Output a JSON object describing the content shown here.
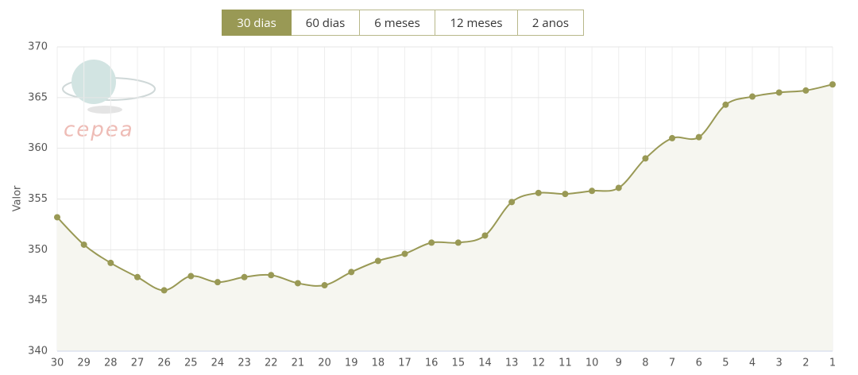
{
  "controls": {
    "buttons": [
      "30 dias",
      "60 dias",
      "6 meses",
      "12 meses",
      "2 anos"
    ],
    "active": 0
  },
  "logo": "cepea",
  "chart_data": {
    "type": "area-spline",
    "y_label": "Valor",
    "categories": [
      "30",
      "29",
      "28",
      "27",
      "26",
      "25",
      "24",
      "23",
      "22",
      "21",
      "20",
      "19",
      "18",
      "17",
      "16",
      "15",
      "14",
      "13",
      "12",
      "11",
      "10",
      "9",
      "8",
      "7",
      "6",
      "5",
      "4",
      "3",
      "2",
      "1"
    ],
    "values": [
      353.2,
      350.5,
      348.7,
      347.3,
      346.0,
      347.4,
      346.8,
      347.3,
      347.5,
      346.7,
      346.5,
      347.8,
      348.9,
      349.6,
      350.7,
      350.7,
      351.4,
      354.7,
      355.6,
      355.5,
      355.8,
      356.1,
      359.0,
      361.0,
      361.1,
      364.3,
      365.1,
      365.5,
      365.7,
      366.3
    ],
    "color": "#999955",
    "fill": "#f6f6f0",
    "ylim": [
      340,
      370
    ],
    "yticks": [
      340,
      345,
      350,
      355,
      360,
      365,
      370
    ],
    "grid": true
  }
}
